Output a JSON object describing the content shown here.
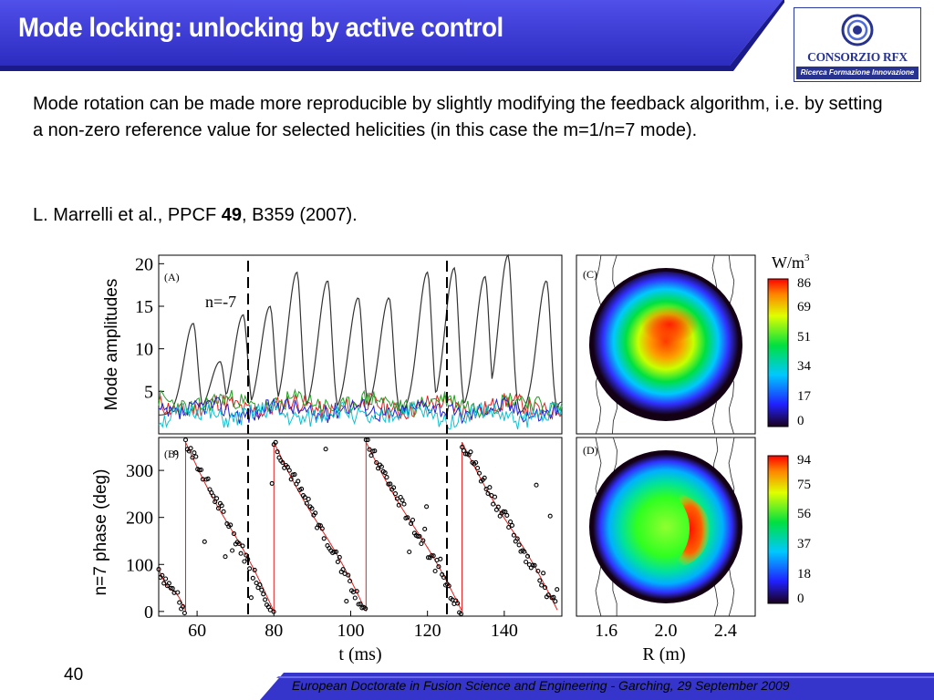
{
  "slide": {
    "title": "Mode locking: unlocking by active control",
    "paragraph": "Mode rotation can be made more reproducible by slightly modifying the feedback algorithm, i.e. by setting a non-zero reference value for selected helicities (in this case the m=1/n=7 mode).",
    "reference": {
      "authors": "L. Marrelli et al., PPCF ",
      "volume": "49",
      "pages": ", B359 (2007)."
    },
    "page_number": "40",
    "footer": "European Doctorate in Fusion Science and Engineering  -  Garching, 29 September 2009"
  },
  "logo": {
    "name": "CONSORZIO RFX",
    "tagline": "Ricerca Formazione Innovazione"
  },
  "colors": {
    "title_blue": "#3333cc",
    "footer_blue": "#2626b8",
    "accent": "#4a4ae6"
  },
  "figure": {
    "panel_a_label": "(A)",
    "panel_b_label": "(B)",
    "panel_c_label": "(C)",
    "panel_d_label": "(D)",
    "annotation": "n=-7",
    "ylabel_top": "Mode amplitudes",
    "ylabel_bottom": "n=7 phase (deg)",
    "xlabel_left": "t (ms)",
    "xlabel_right": "R (m)",
    "colorbar_unit": "W/m",
    "colorbar_unit_exp": "3",
    "colorbar_top_ticks": [
      "86",
      "69",
      "51",
      "34",
      "17",
      "0"
    ],
    "colorbar_bottom_ticks": [
      "94",
      "75",
      "56",
      "37",
      "18",
      "0"
    ]
  },
  "chart_data": [
    {
      "type": "line",
      "panel": "(A)",
      "ylabel": "Mode amplitudes",
      "xlim": [
        50,
        155
      ],
      "ylim": [
        0,
        21
      ],
      "yticks": [
        5,
        10,
        15,
        20
      ],
      "annotation": "n=-7",
      "dashed_lines_x": [
        74,
        128
      ],
      "peaks": [
        [
          59,
          13
        ],
        [
          66,
          8.5
        ],
        [
          72,
          14
        ],
        [
          79,
          15
        ],
        [
          86,
          19
        ],
        [
          94,
          18
        ],
        [
          102,
          16
        ],
        [
          110,
          16
        ],
        [
          120,
          19
        ],
        [
          127,
          19.5
        ],
        [
          135,
          18.5
        ],
        [
          141,
          21
        ],
        [
          151,
          18
        ]
      ]
    },
    {
      "type": "scatter",
      "panel": "(B)",
      "ylabel": "n=7 phase (deg)",
      "xlabel": "t (ms)",
      "xlim": [
        50,
        155
      ],
      "ylim": [
        -10,
        370
      ],
      "xticks": [
        60,
        80,
        100,
        120,
        140
      ],
      "yticks": [
        0,
        100,
        200,
        300
      ],
      "dashed_lines_x": [
        74,
        128
      ],
      "phase_jumps_x": [
        57,
        80,
        104,
        129,
        154
      ]
    },
    {
      "type": "heatmap",
      "panels": [
        "(C)",
        "(D)"
      ],
      "xlabel": "R (m)",
      "xticks": [
        1.6,
        2.0,
        2.4
      ],
      "colorbar_unit": "W/m3",
      "colorbar_C": [
        86,
        69,
        51,
        34,
        17,
        0
      ],
      "colorbar_D": [
        94,
        75,
        56,
        37,
        18,
        0
      ]
    }
  ]
}
